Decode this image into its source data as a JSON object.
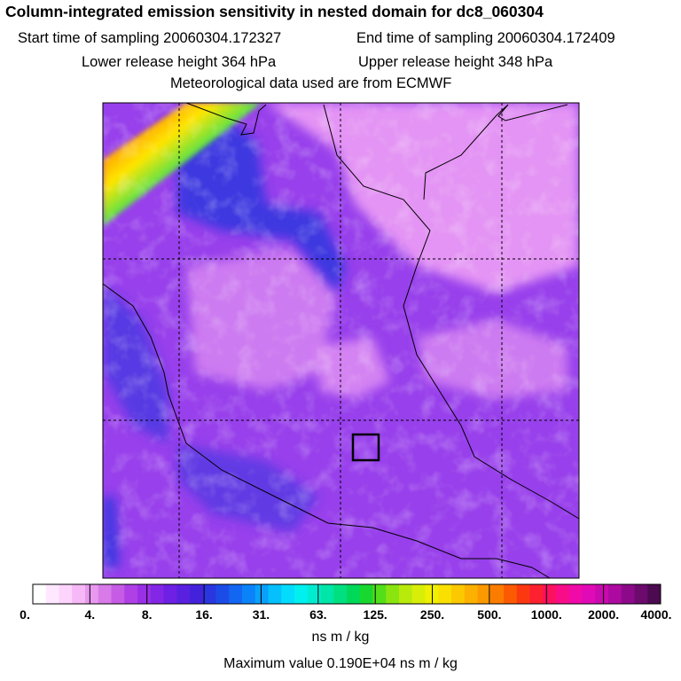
{
  "title": "Column-integrated emission sensitivity in nested domain for dc8_060304",
  "start_label": "Start time of sampling 20060304.172327",
  "end_label": "End time of sampling 20060304.172409",
  "lower_label": "Lower release height  364 hPa",
  "upper_label": "Upper release height  348 hPa",
  "met_label": "Meteorological data used are from ECMWF",
  "colorbar": {
    "labels": [
      "0.",
      "4.",
      "8.",
      "16.",
      "31.",
      "63.",
      "125.",
      "250.",
      "500.",
      "1000.",
      "2000.",
      "4000."
    ],
    "colors": [
      "#ffffff",
      "#ffe8ff",
      "#fcd4fc",
      "#f6b8f6",
      "#e899ef",
      "#d87ae8",
      "#c65ce6",
      "#b040e6",
      "#9a30e6",
      "#8426e6",
      "#6e20e4",
      "#5a20e0",
      "#4422dc",
      "#2a36e0",
      "#1c4ce8",
      "#1266f2",
      "#0a82f8",
      "#08a0fb",
      "#06bffd",
      "#04dcfe",
      "#00f0f0",
      "#00ecd0",
      "#00e6a8",
      "#00e080",
      "#00d85a",
      "#18d830",
      "#52de18",
      "#8ae410",
      "#b8ea0c",
      "#d8ee08",
      "#f0f000",
      "#fae000",
      "#fcc800",
      "#fcb000",
      "#fc9800",
      "#fc7c00",
      "#fc5a00",
      "#fc3810",
      "#fc2030",
      "#fc1060",
      "#f80c88",
      "#f00aa8",
      "#e00ab6",
      "#c80aae",
      "#ac0aa0",
      "#8c0a8a",
      "#6c0a6e",
      "#4c0a50"
    ]
  },
  "units": "ns m / kg",
  "max_label": "Maximum value  0.190E+04 ns m / kg",
  "colors": {
    "field_base": "#9840ec",
    "field_light": "#e494f4",
    "field_blue": "#3c38e0",
    "border_line": "#000000",
    "grid_line": "#000000"
  }
}
